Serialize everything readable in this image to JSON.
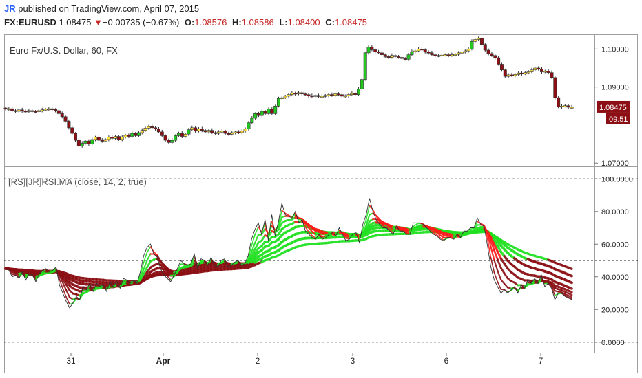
{
  "header": {
    "author": "JR",
    "published_text": "published on TradingView.com, April 07, 2015",
    "symbol": "FX:EURUSD",
    "last": "1.08475",
    "change_arrow": "▼",
    "change": "−0.00735 (−0.67%)",
    "o_label": "O:",
    "o_value": "1.08576",
    "h_label": "H:",
    "h_value": "1.08586",
    "l_label": "L:",
    "l_value": "1.08400",
    "c_label": "C:",
    "c_value": "1.08475"
  },
  "price_panel": {
    "title": "Euro Fx/U.S. Dollar, 60, FX",
    "last_price_badge": "1.08475",
    "countdown_badge": "09:51",
    "badge_color": "#8b0f14"
  },
  "rsi_panel": {
    "title": "[RS][JR]RSI.MA (close, 14, 2, true)"
  },
  "colors": {
    "bull_candle": "#22c71f",
    "bull_light_candle": "#ffe23b",
    "bear_candle": "#8b0f14",
    "rsi_bull": "#21e021",
    "rsi_bear": "#8b0f14",
    "rsi_hot": "#ff1a1a"
  },
  "chart_data": [
    {
      "type": "candlestick",
      "title": "Euro Fx/U.S. Dollar, 60, FX",
      "x_ticks": [
        "31",
        "Apr",
        "2",
        "3",
        "6",
        "7"
      ],
      "y_ticks": [
        "1.10000",
        "1.09000",
        "1.07000"
      ],
      "ylim": [
        1.0695,
        1.1035
      ],
      "close": [
        1.0842,
        1.0843,
        1.0838,
        1.0836,
        1.084,
        1.0837,
        1.0836,
        1.0838,
        1.0836,
        1.0835,
        1.0838,
        1.084,
        1.0842,
        1.0843,
        1.0841,
        1.0838,
        1.083,
        1.0822,
        1.081,
        1.0793,
        1.0778,
        1.076,
        1.0745,
        1.0752,
        1.0758,
        1.075,
        1.0762,
        1.0768,
        1.076,
        1.0758,
        1.0762,
        1.0768,
        1.0765,
        1.077,
        1.0762,
        1.0768,
        1.0773,
        1.077,
        1.0778,
        1.0772,
        1.078,
        1.0786,
        1.0792,
        1.0796,
        1.0793,
        1.079,
        1.0782,
        1.0772,
        1.076,
        1.0754,
        1.076,
        1.0772,
        1.0778,
        1.077,
        1.0776,
        1.0788,
        1.0793,
        1.0784,
        1.079,
        1.0786,
        1.0782,
        1.0786,
        1.078,
        1.0778,
        1.0782,
        1.0784,
        1.0778,
        1.0776,
        1.078,
        1.0782,
        1.078,
        1.0784,
        1.079,
        1.0806,
        1.0818,
        1.083,
        1.0825,
        1.0836,
        1.083,
        1.0842,
        1.083,
        1.085,
        1.087,
        1.0872,
        1.0876,
        1.088,
        1.0884,
        1.0882,
        1.0885,
        1.0882,
        1.088,
        1.0877,
        1.0876,
        1.0878,
        1.0875,
        1.0876,
        1.0878,
        1.088,
        1.0878,
        1.0882,
        1.088,
        1.0876,
        1.0877,
        1.088,
        1.0883,
        1.088,
        1.0895,
        1.092,
        1.099,
        1.1005,
        1.0998,
        1.0993,
        1.099,
        1.0985,
        1.098,
        1.0978,
        1.0983,
        1.098,
        1.0978,
        1.0975,
        1.0973,
        1.0985,
        1.0993,
        1.0995,
        1.1,
        1.0998,
        1.0992,
        1.099,
        1.0985,
        1.0983,
        1.0982,
        1.0984,
        1.0985,
        1.0983,
        1.0985,
        1.0986,
        1.099,
        1.0992,
        1.0995,
        1.1,
        1.102,
        1.1025,
        1.1028,
        1.1012,
        1.0997,
        1.0988,
        1.0983,
        1.0977,
        1.096,
        1.0945,
        1.0928,
        1.0932,
        1.093,
        1.0933,
        1.0937,
        1.0935,
        1.0938,
        1.094,
        1.0945,
        1.095,
        1.0947,
        1.094,
        1.0942,
        1.0938,
        1.0925,
        1.0872,
        1.0848,
        1.085,
        1.0851,
        1.0847,
        1.0847
      ]
    },
    {
      "type": "line",
      "title": "[RS][JR]RSI.MA (close, 14, 2, true)",
      "y_ticks": [
        "100.0000",
        "80.0000",
        "60.0000",
        "40.0000",
        "20.0000",
        "0.0000"
      ],
      "ylim": [
        -6,
        106
      ],
      "reference_lines": [
        100,
        50,
        0
      ],
      "series": [
        {
          "values": [
            45,
            44,
            40,
            41,
            39,
            43,
            38,
            42,
            41,
            37,
            42,
            44,
            45,
            43,
            44,
            46,
            35,
            30,
            25,
            21,
            24,
            28,
            26,
            34,
            32,
            36,
            31,
            36,
            34,
            35,
            31,
            37,
            34,
            37,
            33,
            39,
            38,
            36,
            38,
            36,
            43,
            53,
            58,
            60,
            54,
            52,
            45,
            41,
            39,
            37,
            41,
            45,
            50,
            48,
            47,
            48,
            54,
            45,
            51,
            50,
            47,
            52,
            47,
            46,
            50,
            51,
            46,
            47,
            49,
            50,
            47,
            48,
            53,
            63,
            69,
            73,
            66,
            75,
            62,
            78,
            65,
            74,
            85,
            78,
            77,
            76,
            80,
            73,
            75,
            68,
            66,
            64,
            63,
            66,
            63,
            64,
            66,
            67,
            65,
            70,
            66,
            62,
            63,
            66,
            67,
            61,
            72,
            78,
            88,
            80,
            75,
            72,
            70,
            70,
            68,
            66,
            71,
            68,
            68,
            66,
            66,
            73,
            73,
            73,
            72,
            70,
            68,
            66,
            65,
            63,
            62,
            64,
            64,
            63,
            66,
            64,
            68,
            68,
            70,
            70,
            76,
            72,
            71,
            59,
            46,
            38,
            34,
            30,
            32,
            30,
            32,
            34,
            30,
            35,
            33,
            38,
            36,
            39,
            36,
            41,
            34,
            36,
            33,
            26,
            30,
            30,
            28,
            27,
            26
          ]
        }
      ]
    }
  ]
}
